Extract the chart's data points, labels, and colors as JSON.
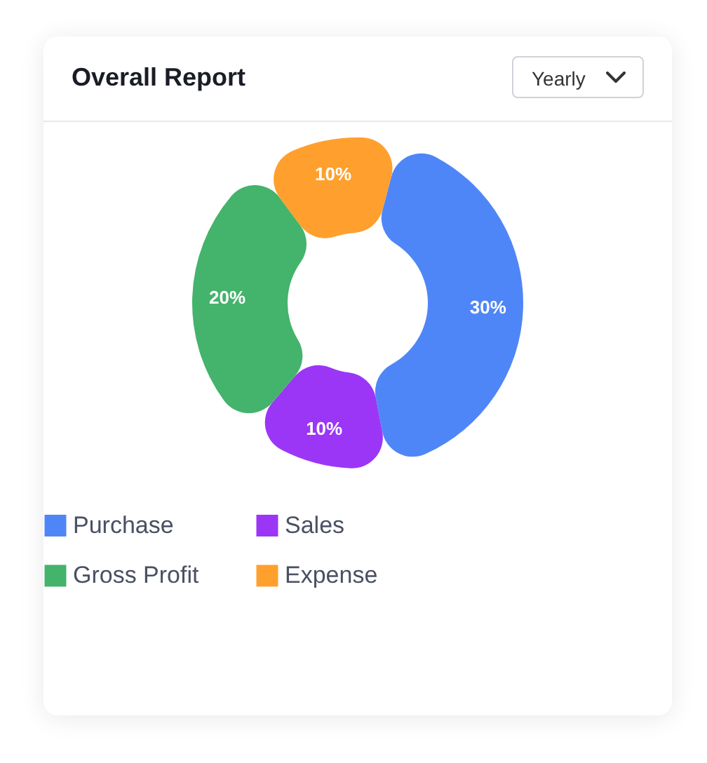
{
  "chart_data": {
    "type": "donut",
    "title": "Overall Report",
    "categories": [
      "Purchase",
      "Sales",
      "Gross Profit",
      "Expense"
    ],
    "values": [
      30,
      10,
      20,
      10
    ],
    "value_labels": [
      "30%",
      "10%",
      "20%",
      "10%"
    ],
    "colors": [
      "#4f86f7",
      "#9b36f7",
      "#44b36b",
      "#ffa02e"
    ],
    "legend": "bottom",
    "annotations": [
      "Yearly"
    ]
  }
}
